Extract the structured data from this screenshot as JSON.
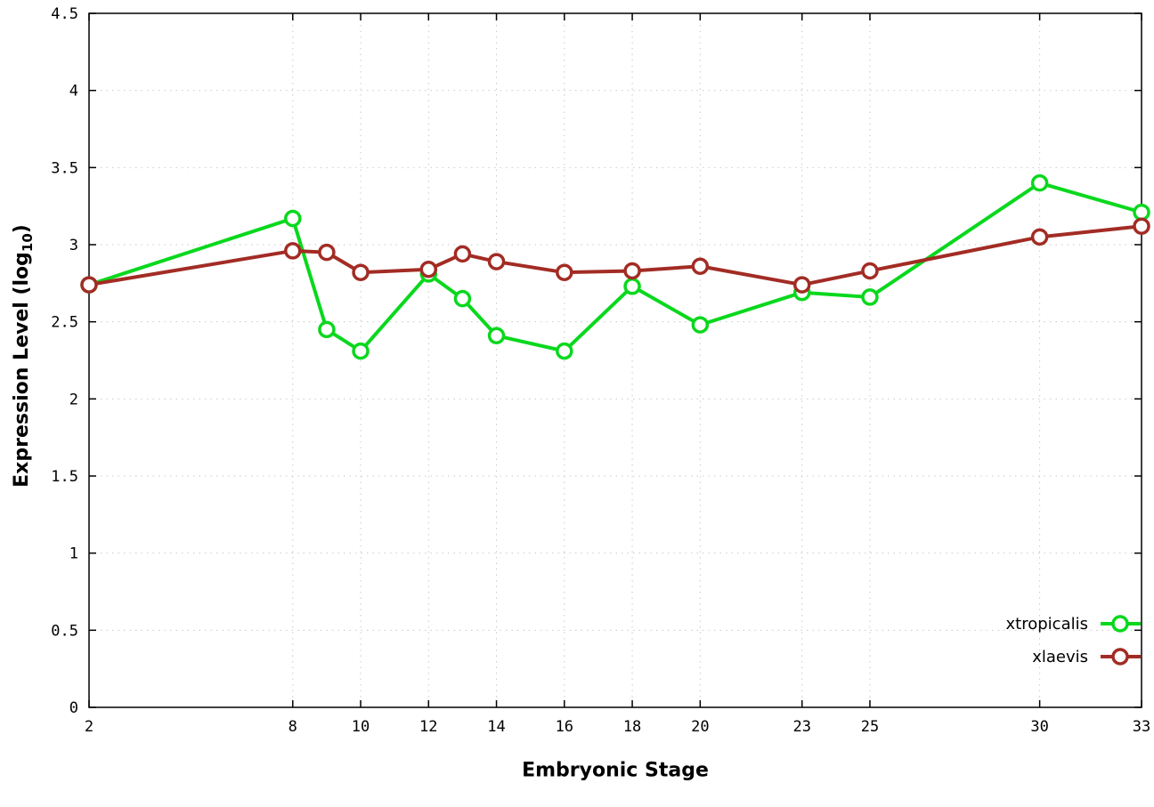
{
  "chart_data": {
    "type": "line",
    "title": "",
    "xlabel": "Embryonic Stage",
    "ylabel": "Expression Level (log10)",
    "ylabel_parts": {
      "main": "Expression Level (log",
      "sub": "10",
      "end": ")"
    },
    "xlim": [
      2,
      33
    ],
    "ylim": [
      0,
      4.5
    ],
    "grid": true,
    "legend_position": "bottom-right",
    "x": [
      2,
      8,
      9,
      10,
      12,
      13,
      14,
      16,
      18,
      20,
      23,
      25,
      30,
      33
    ],
    "xticks": [
      2,
      8,
      10,
      12,
      14,
      16,
      18,
      20,
      23,
      25,
      30,
      33
    ],
    "yticks": [
      0,
      0.5,
      1,
      1.5,
      2,
      2.5,
      3,
      3.5,
      4,
      4.5
    ],
    "ytick_labels": [
      "0",
      "0.5",
      "1",
      "1.5",
      "2",
      "2.5",
      "3",
      "3.5",
      "4",
      "4.5"
    ],
    "series": [
      {
        "name": "xtropicalis",
        "color": "#09d81d",
        "values": [
          2.74,
          3.17,
          2.45,
          2.31,
          2.81,
          2.65,
          2.41,
          2.31,
          2.73,
          2.48,
          2.69,
          2.66,
          3.4,
          3.21
        ]
      },
      {
        "name": "xlaevis",
        "color": "#a22c24",
        "values": [
          2.74,
          2.96,
          2.95,
          2.82,
          2.84,
          2.94,
          2.89,
          2.82,
          2.83,
          2.86,
          2.74,
          2.83,
          3.05,
          3.12
        ]
      }
    ]
  }
}
